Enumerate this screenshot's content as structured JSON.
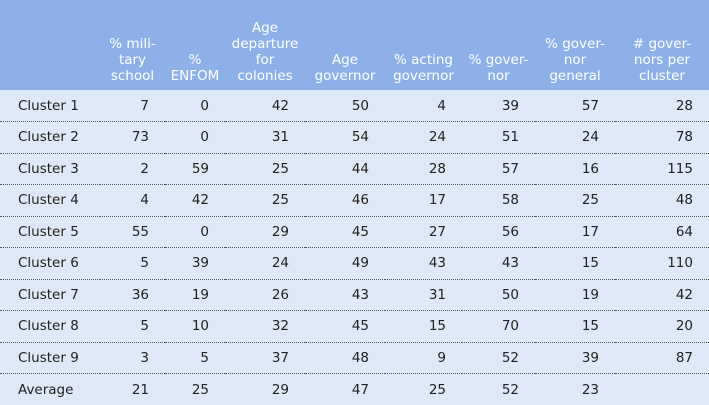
{
  "table": {
    "header": [
      "% mili-\ntary\nschool",
      "%\nENFOM",
      "Age\ndeparture\nfor\ncolonies",
      "Age\ngovernor",
      "% acting\ngovernor",
      "% gover-\nnor",
      "% gover-\nnor\ngeneral",
      "# gover-\nnors per\ncluster"
    ],
    "rows": [
      [
        "Cluster 1",
        7,
        0,
        42,
        50,
        4,
        39,
        57,
        28
      ],
      [
        "Cluster 2",
        73,
        0,
        31,
        54,
        24,
        51,
        24,
        78
      ],
      [
        "Cluster 3",
        2,
        59,
        25,
        44,
        28,
        57,
        16,
        115
      ],
      [
        "Cluster 4",
        4,
        42,
        25,
        46,
        17,
        58,
        25,
        48
      ],
      [
        "Cluster 5",
        55,
        0,
        29,
        45,
        27,
        56,
        17,
        64
      ],
      [
        "Cluster 6",
        5,
        39,
        24,
        49,
        43,
        43,
        15,
        110
      ],
      [
        "Cluster 7",
        36,
        19,
        26,
        43,
        31,
        50,
        19,
        42
      ],
      [
        "Cluster 8",
        5,
        10,
        32,
        45,
        15,
        70,
        15,
        20
      ],
      [
        "Cluster 9",
        3,
        5,
        37,
        48,
        9,
        52,
        39,
        87
      ],
      [
        "Average",
        21,
        25,
        29,
        47,
        25,
        52,
        23
      ]
    ]
  }
}
